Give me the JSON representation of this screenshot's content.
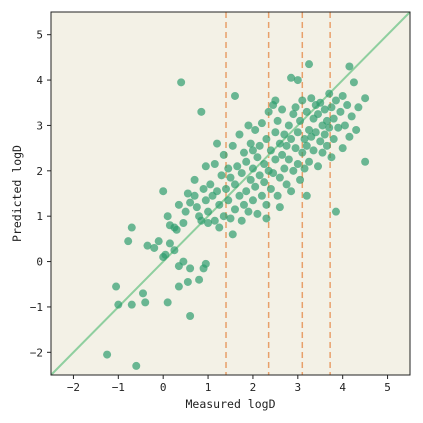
{
  "chart_data": {
    "type": "scatter",
    "xlabel": "Measured logD",
    "ylabel": "Predicted logD",
    "xlim": [
      -2.5,
      5.5
    ],
    "ylim": [
      -2.5,
      5.5
    ],
    "xticks": [
      -2,
      -1,
      0,
      1,
      2,
      3,
      4,
      5
    ],
    "yticks": [
      -2,
      -1,
      0,
      1,
      2,
      3,
      4,
      5
    ],
    "vertical_lines": [
      1.4,
      2.35,
      3.1,
      3.72
    ],
    "identity_line": true,
    "grid": false,
    "colors": {
      "plot_background": "#f3f1e6",
      "points": "#2e9c6e",
      "identity_line": "#8fcf9f",
      "vertical_lines": "#e8a06a"
    },
    "points": [
      [
        -1.25,
        -2.05
      ],
      [
        -1.05,
        -0.55
      ],
      [
        -1.0,
        -0.95
      ],
      [
        -0.78,
        0.45
      ],
      [
        -0.7,
        0.75
      ],
      [
        -0.7,
        -0.95
      ],
      [
        -0.45,
        -0.7
      ],
      [
        -0.4,
        -0.9
      ],
      [
        -0.35,
        0.35
      ],
      [
        -0.2,
        0.3
      ],
      [
        -0.1,
        0.45
      ],
      [
        -0.6,
        -2.3
      ],
      [
        0.0,
        0.1
      ],
      [
        0.05,
        0.15
      ],
      [
        0.15,
        0.4
      ],
      [
        0.25,
        0.25
      ],
      [
        0.3,
        0.7
      ],
      [
        0.35,
        -0.1
      ],
      [
        0.45,
        0.0
      ],
      [
        0.55,
        -0.45
      ],
      [
        0.6,
        -0.15
      ],
      [
        0.1,
        -0.9
      ],
      [
        0.35,
        -0.55
      ],
      [
        0.6,
        -1.2
      ],
      [
        0.8,
        -0.4
      ],
      [
        0.9,
        -0.15
      ],
      [
        0.95,
        -0.05
      ],
      [
        0.4,
        3.95
      ],
      [
        0.85,
        3.3
      ],
      [
        1.6,
        3.65
      ],
      [
        0.0,
        1.55
      ],
      [
        0.1,
        1.0
      ],
      [
        0.15,
        0.8
      ],
      [
        0.25,
        0.75
      ],
      [
        0.35,
        1.25
      ],
      [
        0.45,
        0.85
      ],
      [
        0.5,
        1.1
      ],
      [
        0.55,
        1.5
      ],
      [
        0.6,
        1.3
      ],
      [
        0.7,
        1.8
      ],
      [
        0.75,
        1.2
      ],
      [
        0.8,
        1.0
      ],
      [
        0.85,
        0.9
      ],
      [
        0.9,
        1.6
      ],
      [
        0.95,
        1.35
      ],
      [
        1.0,
        1.1
      ],
      [
        1.0,
        0.85
      ],
      [
        1.05,
        1.7
      ],
      [
        1.1,
        1.45
      ],
      [
        1.15,
        0.9
      ],
      [
        1.15,
        2.15
      ],
      [
        1.2,
        1.55
      ],
      [
        1.25,
        1.25
      ],
      [
        1.25,
        0.75
      ],
      [
        1.3,
        1.9
      ],
      [
        1.35,
        2.35
      ],
      [
        1.35,
        1.0
      ],
      [
        1.4,
        1.6
      ],
      [
        1.45,
        1.35
      ],
      [
        1.45,
        2.05
      ],
      [
        1.5,
        0.95
      ],
      [
        1.5,
        1.85
      ],
      [
        1.55,
        2.55
      ],
      [
        1.6,
        1.15
      ],
      [
        1.6,
        1.7
      ],
      [
        1.65,
        2.1
      ],
      [
        1.7,
        1.45
      ],
      [
        1.7,
        2.8
      ],
      [
        1.75,
        0.9
      ],
      [
        1.75,
        1.95
      ],
      [
        1.8,
        2.4
      ],
      [
        1.85,
        1.55
      ],
      [
        1.85,
        2.2
      ],
      [
        1.9,
        1.1
      ],
      [
        1.9,
        3.0
      ],
      [
        1.95,
        1.8
      ],
      [
        1.95,
        2.6
      ],
      [
        2.0,
        1.35
      ],
      [
        2.0,
        2.05
      ],
      [
        2.05,
        2.9
      ],
      [
        2.05,
        1.65
      ],
      [
        2.1,
        2.3
      ],
      [
        2.1,
        1.05
      ],
      [
        2.15,
        2.55
      ],
      [
        2.15,
        1.9
      ],
      [
        2.2,
        1.45
      ],
      [
        2.2,
        3.05
      ],
      [
        2.25,
        2.15
      ],
      [
        2.25,
        1.75
      ],
      [
        2.3,
        2.7
      ],
      [
        2.3,
        1.25
      ],
      [
        2.35,
        3.3
      ],
      [
        2.35,
        2.0
      ],
      [
        2.4,
        1.6
      ],
      [
        2.4,
        2.45
      ],
      [
        2.45,
        3.45
      ],
      [
        2.45,
        1.95
      ],
      [
        2.5,
        2.85
      ],
      [
        2.5,
        2.25
      ],
      [
        2.55,
        1.45
      ],
      [
        2.55,
        3.1
      ],
      [
        2.6,
        2.6
      ],
      [
        2.6,
        1.85
      ],
      [
        2.65,
        2.35
      ],
      [
        2.65,
        3.35
      ],
      [
        2.7,
        2.05
      ],
      [
        2.7,
        2.8
      ],
      [
        2.75,
        1.7
      ],
      [
        2.75,
        2.55
      ],
      [
        2.8,
        3.0
      ],
      [
        2.8,
        2.25
      ],
      [
        2.85,
        1.55
      ],
      [
        2.85,
        2.7
      ],
      [
        2.9,
        3.25
      ],
      [
        2.9,
        2.0
      ],
      [
        2.95,
        2.5
      ],
      [
        2.95,
        3.4
      ],
      [
        3.0,
        2.15
      ],
      [
        3.0,
        2.85
      ],
      [
        3.05,
        1.8
      ],
      [
        3.05,
        3.1
      ],
      [
        3.1,
        2.4
      ],
      [
        3.1,
        3.55
      ],
      [
        3.15,
        2.7
      ],
      [
        3.15,
        2.05
      ],
      [
        3.2,
        3.3
      ],
      [
        3.2,
        2.55
      ],
      [
        3.25,
        2.9
      ],
      [
        3.25,
        2.2
      ],
      [
        3.3,
        3.6
      ],
      [
        3.3,
        2.75
      ],
      [
        3.35,
        3.15
      ],
      [
        3.35,
        2.45
      ],
      [
        3.4,
        3.45
      ],
      [
        3.4,
        2.85
      ],
      [
        3.45,
        2.1
      ],
      [
        3.45,
        3.25
      ],
      [
        3.5,
        2.65
      ],
      [
        3.5,
        3.5
      ],
      [
        3.55,
        3.0
      ],
      [
        3.55,
        2.4
      ],
      [
        3.6,
        3.35
      ],
      [
        3.6,
        2.8
      ],
      [
        3.65,
        3.1
      ],
      [
        3.65,
        2.55
      ],
      [
        3.7,
        3.7
      ],
      [
        3.7,
        2.95
      ],
      [
        3.75,
        3.4
      ],
      [
        3.75,
        2.3
      ],
      [
        3.8,
        3.15
      ],
      [
        3.8,
        2.7
      ],
      [
        3.85,
        3.55
      ],
      [
        3.9,
        2.95
      ],
      [
        3.95,
        3.3
      ],
      [
        4.0,
        3.65
      ],
      [
        4.0,
        2.5
      ],
      [
        4.05,
        3.0
      ],
      [
        4.1,
        3.45
      ],
      [
        4.15,
        2.75
      ],
      [
        4.15,
        4.3
      ],
      [
        4.2,
        3.2
      ],
      [
        4.25,
        3.95
      ],
      [
        4.3,
        2.9
      ],
      [
        4.35,
        3.4
      ],
      [
        4.5,
        3.6
      ],
      [
        4.5,
        2.2
      ],
      [
        3.0,
        4.0
      ],
      [
        3.25,
        4.35
      ],
      [
        3.85,
        1.1
      ],
      [
        2.5,
        3.55
      ],
      [
        2.0,
        2.45
      ],
      [
        1.8,
        1.25
      ],
      [
        2.3,
        0.95
      ],
      [
        2.6,
        1.2
      ],
      [
        3.2,
        1.45
      ],
      [
        2.85,
        4.05
      ],
      [
        1.2,
        2.6
      ],
      [
        1.55,
        0.6
      ],
      [
        0.95,
        2.1
      ],
      [
        0.7,
        1.45
      ]
    ]
  }
}
